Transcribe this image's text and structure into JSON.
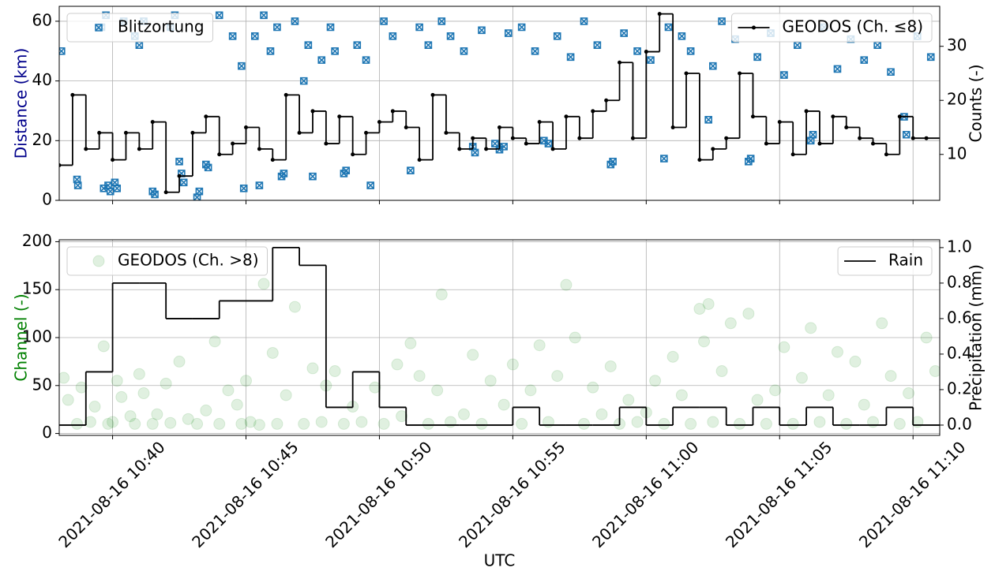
{
  "chart_data": [
    {
      "type": "combo",
      "ylabel": "Distance (km)",
      "ylabel_color": "#00008b",
      "y2label": "Counts (-)",
      "xlim": [
        "2021-08-16 10:38",
        "2021-08-16 11:11"
      ],
      "xticks": [
        "2021-08-16 10:40",
        "2021-08-16 10:45",
        "2021-08-16 10:50",
        "2021-08-16 10:55",
        "2021-08-16 11:00",
        "2021-08-16 11:05",
        "2021-08-16 11:10"
      ],
      "xtick_labels": false,
      "ylim": [
        0,
        65
      ],
      "yticks": [
        0,
        20,
        40,
        60
      ],
      "y2lim": [
        1.5,
        37.4
      ],
      "y2ticks": [
        10,
        20,
        30
      ],
      "grid": true,
      "series": [
        {
          "name": "Blitzortung",
          "kind": "scatter",
          "marker": "x-square",
          "color": "#1f77b4",
          "legend": "upper left",
          "x": [
            "2021-08-16 10:38:05",
            "2021-08-16 10:38:40",
            "2021-08-16 10:38:42",
            "2021-08-16 10:39:40",
            "2021-08-16 10:39:50",
            "2021-08-16 10:39:55",
            "2021-08-16 10:40:05",
            "2021-08-16 10:40:10",
            "2021-08-16 10:39:35",
            "2021-08-16 10:39:45",
            "2021-08-16 10:40:25",
            "2021-08-16 10:40:50",
            "2021-08-16 10:41:00",
            "2021-08-16 10:41:10",
            "2021-08-16 10:41:30",
            "2021-08-16 10:41:35",
            "2021-08-16 10:42:10",
            "2021-08-16 10:42:20",
            "2021-08-16 10:42:30",
            "2021-08-16 10:42:35",
            "2021-08-16 10:42:40",
            "2021-08-16 10:43:10",
            "2021-08-16 10:43:15",
            "2021-08-16 10:43:30",
            "2021-08-16 10:43:35",
            "2021-08-16 10:44:00",
            "2021-08-16 10:44:30",
            "2021-08-16 10:44:50",
            "2021-08-16 10:44:55",
            "2021-08-16 10:45:20",
            "2021-08-16 10:45:30",
            "2021-08-16 10:45:40",
            "2021-08-16 10:45:55",
            "2021-08-16 10:46:10",
            "2021-08-16 10:46:20",
            "2021-08-16 10:46:25",
            "2021-08-16 10:46:50",
            "2021-08-16 10:47:10",
            "2021-08-16 10:47:20",
            "2021-08-16 10:47:30",
            "2021-08-16 10:47:50",
            "2021-08-16 10:48:10",
            "2021-08-16 10:48:20",
            "2021-08-16 10:48:40",
            "2021-08-16 10:48:45",
            "2021-08-16 10:49:10",
            "2021-08-16 10:49:30",
            "2021-08-16 10:49:40",
            "2021-08-16 10:50:10",
            "2021-08-16 10:50:30",
            "2021-08-16 10:51:10",
            "2021-08-16 10:51:30",
            "2021-08-16 10:51:50",
            "2021-08-16 10:52:20",
            "2021-08-16 10:52:40",
            "2021-08-16 10:53:10",
            "2021-08-16 10:53:30",
            "2021-08-16 10:53:35",
            "2021-08-16 10:53:50",
            "2021-08-16 10:54:20",
            "2021-08-16 10:54:30",
            "2021-08-16 10:54:40",
            "2021-08-16 10:54:50",
            "2021-08-16 10:55:20",
            "2021-08-16 10:55:50",
            "2021-08-16 10:56:10",
            "2021-08-16 10:56:20",
            "2021-08-16 10:56:40",
            "2021-08-16 10:57:10",
            "2021-08-16 10:57:40",
            "2021-08-16 10:58:10",
            "2021-08-16 10:58:40",
            "2021-08-16 10:58:45",
            "2021-08-16 10:59:10",
            "2021-08-16 10:59:40",
            "2021-08-16 11:00:10",
            "2021-08-16 11:00:40",
            "2021-08-16 11:00:50",
            "2021-08-16 11:01:20",
            "2021-08-16 11:01:40",
            "2021-08-16 11:02:20",
            "2021-08-16 11:02:30",
            "2021-08-16 11:02:50",
            "2021-08-16 11:03:20",
            "2021-08-16 11:03:50",
            "2021-08-16 11:03:55",
            "2021-08-16 11:04:10",
            "2021-08-16 11:04:40",
            "2021-08-16 11:05:10",
            "2021-08-16 11:05:40",
            "2021-08-16 11:06:10",
            "2021-08-16 11:06:15",
            "2021-08-16 11:06:40",
            "2021-08-16 11:07:10",
            "2021-08-16 11:07:40",
            "2021-08-16 11:08:10",
            "2021-08-16 11:08:40",
            "2021-08-16 11:09:10",
            "2021-08-16 11:09:40",
            "2021-08-16 11:09:45",
            "2021-08-16 11:10:10",
            "2021-08-16 11:10:40"
          ],
          "values": [
            50,
            7,
            5,
            4,
            5,
            3,
            6,
            4,
            58,
            62,
            60,
            55,
            52,
            60,
            3,
            2,
            58,
            62,
            13,
            9,
            6,
            1,
            3,
            12,
            11,
            62,
            55,
            45,
            4,
            55,
            5,
            62,
            50,
            58,
            8,
            9,
            60,
            40,
            52,
            8,
            47,
            58,
            50,
            9,
            10,
            52,
            47,
            5,
            60,
            55,
            10,
            58,
            52,
            60,
            55,
            50,
            18,
            16,
            57,
            19,
            17,
            18,
            56,
            58,
            50,
            20,
            19,
            55,
            48,
            60,
            52,
            12,
            13,
            56,
            50,
            47,
            14,
            58,
            55,
            50,
            27,
            45,
            60,
            54,
            13,
            14,
            48,
            56,
            42,
            52,
            20,
            22,
            58,
            44,
            54,
            47,
            52,
            43,
            28,
            22,
            55,
            48
          ]
        },
        {
          "name": "GEODOS (Ch. ≤8)",
          "kind": "step",
          "markers": true,
          "color": "#000000",
          "axis": "y2",
          "legend": "upper right",
          "x": [
            "2021-08-16 10:38:00",
            "2021-08-16 10:38:30",
            "2021-08-16 10:39:00",
            "2021-08-16 10:39:30",
            "2021-08-16 10:40:00",
            "2021-08-16 10:40:30",
            "2021-08-16 10:41:00",
            "2021-08-16 10:41:30",
            "2021-08-16 10:42:00",
            "2021-08-16 10:42:30",
            "2021-08-16 10:43:00",
            "2021-08-16 10:43:30",
            "2021-08-16 10:44:00",
            "2021-08-16 10:44:30",
            "2021-08-16 10:45:00",
            "2021-08-16 10:45:30",
            "2021-08-16 10:46:00",
            "2021-08-16 10:46:30",
            "2021-08-16 10:47:00",
            "2021-08-16 10:47:30",
            "2021-08-16 10:48:00",
            "2021-08-16 10:48:30",
            "2021-08-16 10:49:00",
            "2021-08-16 10:49:30",
            "2021-08-16 10:50:00",
            "2021-08-16 10:50:30",
            "2021-08-16 10:51:00",
            "2021-08-16 10:51:30",
            "2021-08-16 10:52:00",
            "2021-08-16 10:52:30",
            "2021-08-16 10:53:00",
            "2021-08-16 10:53:30",
            "2021-08-16 10:54:00",
            "2021-08-16 10:54:30",
            "2021-08-16 10:55:00",
            "2021-08-16 10:55:30",
            "2021-08-16 10:56:00",
            "2021-08-16 10:56:30",
            "2021-08-16 10:57:00",
            "2021-08-16 10:57:30",
            "2021-08-16 10:58:00",
            "2021-08-16 10:58:30",
            "2021-08-16 10:59:00",
            "2021-08-16 10:59:30",
            "2021-08-16 11:00:00",
            "2021-08-16 11:00:30",
            "2021-08-16 11:01:00",
            "2021-08-16 11:01:30",
            "2021-08-16 11:02:00",
            "2021-08-16 11:02:30",
            "2021-08-16 11:03:00",
            "2021-08-16 11:03:30",
            "2021-08-16 11:04:00",
            "2021-08-16 11:04:30",
            "2021-08-16 11:05:00",
            "2021-08-16 11:05:30",
            "2021-08-16 11:06:00",
            "2021-08-16 11:06:30",
            "2021-08-16 11:07:00",
            "2021-08-16 11:07:30",
            "2021-08-16 11:08:00",
            "2021-08-16 11:08:30",
            "2021-08-16 11:09:00",
            "2021-08-16 11:09:30",
            "2021-08-16 11:10:00",
            "2021-08-16 11:10:30"
          ],
          "values": [
            8,
            21,
            11,
            14,
            9,
            14,
            11,
            16,
            3,
            6,
            14,
            17,
            10,
            12,
            15,
            11,
            9,
            21,
            14,
            18,
            12,
            17,
            10,
            14,
            16,
            18,
            15,
            9,
            21,
            14,
            11,
            13,
            11,
            15,
            13,
            12,
            16,
            11,
            17,
            13,
            18,
            20,
            27,
            13,
            29,
            36,
            15,
            25,
            9,
            11,
            13,
            25,
            17,
            12,
            16,
            10,
            18,
            12,
            17,
            15,
            13,
            12,
            10,
            17,
            13,
            13
          ]
        }
      ]
    },
    {
      "type": "combo",
      "xlabel": "UTC",
      "ylabel": "Channel (-)",
      "ylabel_color": "#008000",
      "y2label": "Precipitation (mm)",
      "xlim": [
        "2021-08-16 10:38",
        "2021-08-16 11:11"
      ],
      "xticks": [
        "2021-08-16 10:40",
        "2021-08-16 10:45",
        "2021-08-16 10:50",
        "2021-08-16 10:55",
        "2021-08-16 11:00",
        "2021-08-16 11:05",
        "2021-08-16 11:10"
      ],
      "xtick_labels": true,
      "ylim": [
        -2,
        202
      ],
      "yticks": [
        0,
        50,
        100,
        150,
        200
      ],
      "y2lim": [
        -0.058,
        1.044
      ],
      "y2ticks": [
        {
          "value": 0,
          "label": "0.0"
        },
        0.2,
        0.4,
        0.6,
        0.8,
        {
          "value": 1,
          "label": "1.0"
        }
      ],
      "grid": true,
      "series": [
        {
          "name": "GEODOS (Ch. >8)",
          "kind": "scatter",
          "marker": "circle",
          "color": "#008000",
          "alpha": 0.12,
          "legend": "upper left",
          "x": [
            "2021-08-16 10:38:10",
            "2021-08-16 10:38:20",
            "2021-08-16 10:38:40",
            "2021-08-16 10:38:50",
            "2021-08-16 10:39:10",
            "2021-08-16 10:39:20",
            "2021-08-16 10:39:40",
            "2021-08-16 10:39:50",
            "2021-08-16 10:40:00",
            "2021-08-16 10:40:10",
            "2021-08-16 10:40:20",
            "2021-08-16 10:40:40",
            "2021-08-16 10:40:50",
            "2021-08-16 10:41:00",
            "2021-08-16 10:41:10",
            "2021-08-16 10:41:30",
            "2021-08-16 10:41:40",
            "2021-08-16 10:42:00",
            "2021-08-16 10:42:10",
            "2021-08-16 10:42:30",
            "2021-08-16 10:42:50",
            "2021-08-16 10:43:10",
            "2021-08-16 10:43:30",
            "2021-08-16 10:43:50",
            "2021-08-16 10:44:00",
            "2021-08-16 10:44:20",
            "2021-08-16 10:44:40",
            "2021-08-16 10:44:50",
            "2021-08-16 10:45:00",
            "2021-08-16 10:45:10",
            "2021-08-16 10:45:30",
            "2021-08-16 10:45:40",
            "2021-08-16 10:46:00",
            "2021-08-16 10:46:10",
            "2021-08-16 10:46:30",
            "2021-08-16 10:46:50",
            "2021-08-16 10:47:10",
            "2021-08-16 10:47:30",
            "2021-08-16 10:47:50",
            "2021-08-16 10:48:00",
            "2021-08-16 10:48:20",
            "2021-08-16 10:48:40",
            "2021-08-16 10:49:00",
            "2021-08-16 10:49:20",
            "2021-08-16 10:49:50",
            "2021-08-16 10:50:10",
            "2021-08-16 10:50:40",
            "2021-08-16 10:50:50",
            "2021-08-16 10:51:10",
            "2021-08-16 10:51:30",
            "2021-08-16 10:51:50",
            "2021-08-16 10:52:10",
            "2021-08-16 10:52:20",
            "2021-08-16 10:52:40",
            "2021-08-16 10:53:10",
            "2021-08-16 10:53:30",
            "2021-08-16 10:53:50",
            "2021-08-16 10:54:10",
            "2021-08-16 10:54:40",
            "2021-08-16 10:55:00",
            "2021-08-16 10:55:20",
            "2021-08-16 10:55:40",
            "2021-08-16 10:56:00",
            "2021-08-16 10:56:20",
            "2021-08-16 10:56:40",
            "2021-08-16 10:57:00",
            "2021-08-16 10:57:20",
            "2021-08-16 10:57:40",
            "2021-08-16 10:58:00",
            "2021-08-16 10:58:20",
            "2021-08-16 10:58:40",
            "2021-08-16 10:59:00",
            "2021-08-16 10:59:20",
            "2021-08-16 10:59:40",
            "2021-08-16 11:00:00",
            "2021-08-16 11:00:20",
            "2021-08-16 11:00:40",
            "2021-08-16 11:01:00",
            "2021-08-16 11:01:20",
            "2021-08-16 11:01:40",
            "2021-08-16 11:02:00",
            "2021-08-16 11:02:10",
            "2021-08-16 11:02:20",
            "2021-08-16 11:02:30",
            "2021-08-16 11:02:50",
            "2021-08-16 11:03:10",
            "2021-08-16 11:03:30",
            "2021-08-16 11:03:50",
            "2021-08-16 11:04:10",
            "2021-08-16 11:04:30",
            "2021-08-16 11:04:50",
            "2021-08-16 11:05:10",
            "2021-08-16 11:05:30",
            "2021-08-16 11:05:50",
            "2021-08-16 11:06:10",
            "2021-08-16 11:06:30",
            "2021-08-16 11:06:50",
            "2021-08-16 11:07:10",
            "2021-08-16 11:07:30",
            "2021-08-16 11:07:50",
            "2021-08-16 11:08:10",
            "2021-08-16 11:08:30",
            "2021-08-16 11:08:50",
            "2021-08-16 11:09:10",
            "2021-08-16 11:09:30",
            "2021-08-16 11:09:50",
            "2021-08-16 11:10:10",
            "2021-08-16 11:10:30",
            "2021-08-16 11:10:50"
          ],
          "values": [
            58,
            35,
            10,
            48,
            12,
            28,
            91,
            10,
            12,
            55,
            38,
            18,
            10,
            62,
            42,
            10,
            20,
            52,
            11,
            75,
            15,
            10,
            24,
            96,
            10,
            45,
            30,
            10,
            55,
            12,
            9,
            156,
            84,
            10,
            40,
            132,
            10,
            68,
            12,
            50,
            65,
            10,
            28,
            12,
            48,
            10,
            72,
            18,
            94,
            60,
            10,
            45,
            145,
            12,
            20,
            82,
            10,
            55,
            30,
            72,
            10,
            45,
            92,
            12,
            60,
            155,
            100,
            10,
            48,
            20,
            70,
            10,
            35,
            12,
            22,
            55,
            10,
            80,
            40,
            10,
            130,
            96,
            135,
            12,
            65,
            115,
            10,
            125,
            35,
            10,
            45,
            90,
            10,
            58,
            110,
            12,
            40,
            85,
            10,
            75,
            30,
            12,
            115,
            60,
            10,
            42,
            12,
            100,
            65
          ]
        },
        {
          "name": "Rain",
          "kind": "step",
          "markers": false,
          "color": "#000000",
          "axis": "y2",
          "legend": "upper right",
          "x": [
            "2021-08-16 10:38",
            "2021-08-16 10:39",
            "2021-08-16 10:40",
            "2021-08-16 10:41",
            "2021-08-16 10:42",
            "2021-08-16 10:43",
            "2021-08-16 10:44",
            "2021-08-16 10:45",
            "2021-08-16 10:46",
            "2021-08-16 10:47",
            "2021-08-16 10:48",
            "2021-08-16 10:49",
            "2021-08-16 10:50",
            "2021-08-16 10:51",
            "2021-08-16 10:52",
            "2021-08-16 10:53",
            "2021-08-16 10:54",
            "2021-08-16 10:55",
            "2021-08-16 10:56",
            "2021-08-16 10:57",
            "2021-08-16 10:58",
            "2021-08-16 10:59",
            "2021-08-16 11:00",
            "2021-08-16 11:01",
            "2021-08-16 11:02",
            "2021-08-16 11:03",
            "2021-08-16 11:04",
            "2021-08-16 11:05",
            "2021-08-16 11:06",
            "2021-08-16 11:07",
            "2021-08-16 11:08",
            "2021-08-16 11:09",
            "2021-08-16 11:10"
          ],
          "values": [
            0,
            0.3,
            0.8,
            0.8,
            0.6,
            0.6,
            0.7,
            0.7,
            1.0,
            0.9,
            0.1,
            0.3,
            0.1,
            0,
            0,
            0,
            0,
            0.1,
            0,
            0,
            0,
            0.1,
            0,
            0.1,
            0.1,
            0,
            0.1,
            0,
            0.1,
            0,
            0,
            0.1,
            0
          ]
        }
      ]
    }
  ]
}
